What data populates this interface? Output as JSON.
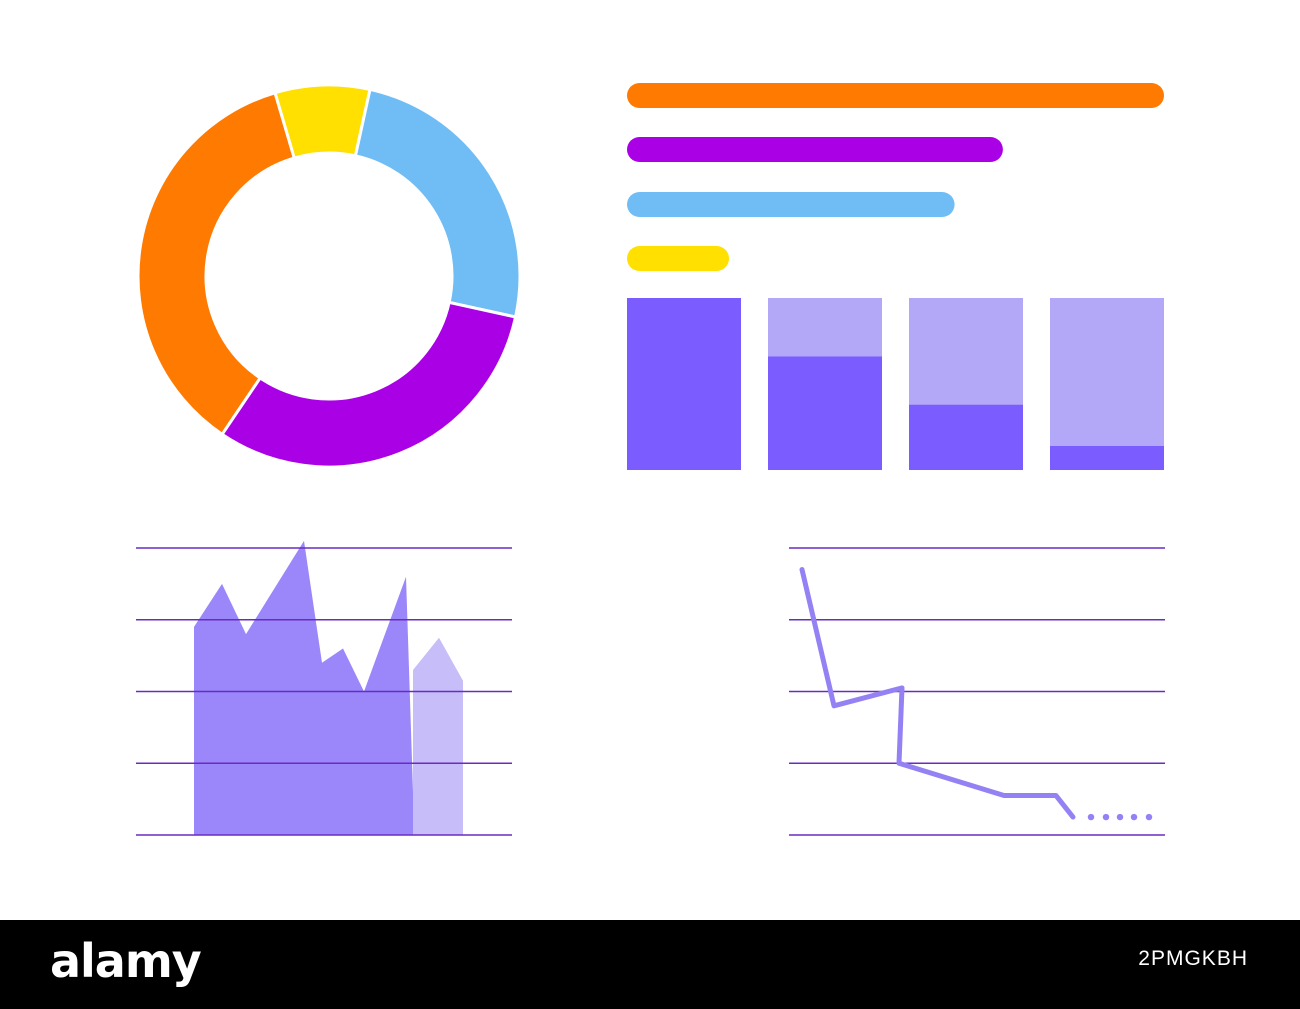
{
  "colors": {
    "background": "#ffffff",
    "footer": "#000000",
    "orange": "#ff7a00",
    "yellow": "#ffe000",
    "blue": "#70bdf5",
    "purple": "#aa00e6",
    "bar_dark": "#7b5cff",
    "bar_light": "#b3a7f7",
    "area_main": "#9b86fa",
    "area_light": "#c7bdf8",
    "line": "#9482f5",
    "grid": "#6a2cc0"
  },
  "chart_data": [
    {
      "type": "pie",
      "variant": "donut",
      "slices": [
        {
          "color": "orange",
          "value": 36
        },
        {
          "color": "yellow",
          "value": 8
        },
        {
          "color": "blue",
          "value": 25
        },
        {
          "color": "purple",
          "value": 31
        }
      ]
    },
    {
      "type": "bar",
      "orientation": "horizontal",
      "max": 100,
      "values": [
        100,
        70,
        61,
        19
      ],
      "series_colors": [
        "orange",
        "purple",
        "blue",
        "yellow"
      ]
    },
    {
      "type": "bar",
      "stacked": true,
      "max": 100,
      "categories": [
        "",
        "",
        "",
        ""
      ],
      "series": [
        {
          "color": "bar_dark",
          "values": [
            100,
            66,
            38,
            14
          ]
        },
        {
          "color": "bar_light",
          "values": [
            0,
            34,
            62,
            86
          ]
        }
      ]
    },
    {
      "type": "area",
      "ylim": [
        0,
        4
      ],
      "grid": true,
      "gridlines": 5,
      "series": [
        {
          "color": "area_main",
          "x": [
            0,
            1,
            2,
            3,
            4,
            5,
            6,
            7,
            8,
            9,
            10,
            11
          ],
          "values": [
            2.9,
            3.5,
            2.8,
            4.1,
            2.4,
            2.6,
            2.0,
            3.6,
            0.6,
            0,
            0,
            0
          ]
        },
        {
          "color": "area_light",
          "x": [
            8,
            9,
            10,
            11
          ],
          "values": [
            2.3,
            2.75,
            2.15,
            0
          ]
        }
      ]
    },
    {
      "type": "line",
      "ylim": [
        0,
        4
      ],
      "grid": true,
      "gridlines": 5,
      "series": [
        {
          "color": "line",
          "x": [
            0,
            1,
            2,
            3,
            4,
            5,
            6,
            7
          ],
          "values": [
            3.7,
            1.8,
            2.05,
            1.0,
            0.55,
            0.55,
            0.25,
            0.25
          ],
          "dotted_tail": true
        }
      ]
    }
  ],
  "footer": {
    "brand": "alamy",
    "image_id": "2PMGKBH"
  }
}
